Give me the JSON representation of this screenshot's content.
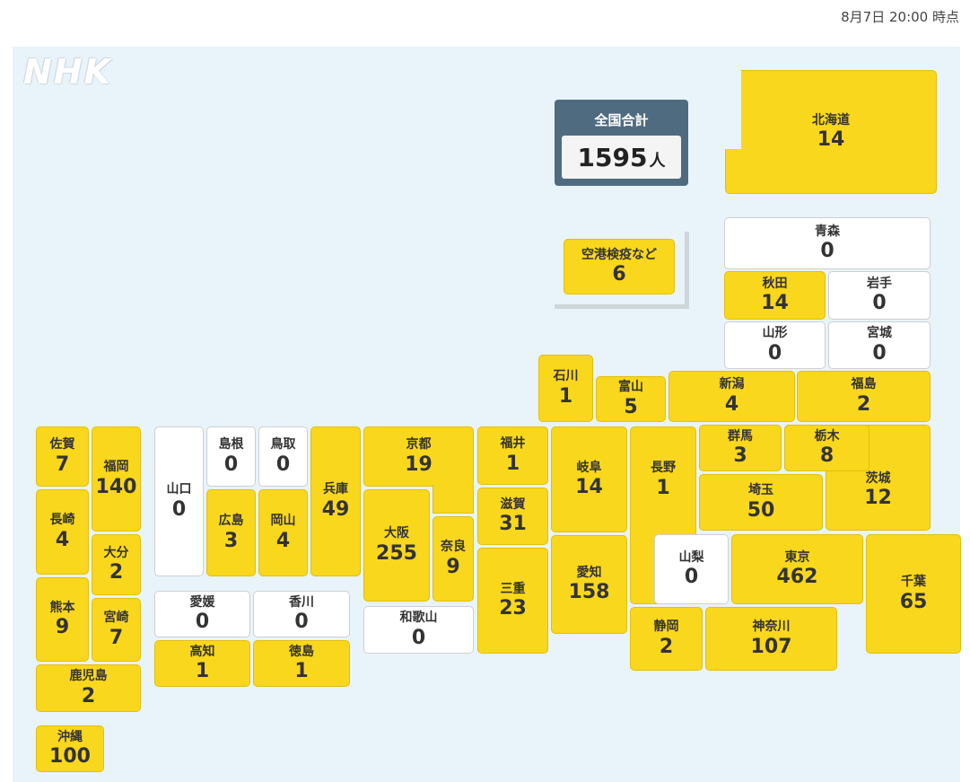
{
  "timestamp": "8月7日 20:00 時点",
  "logo": "NHK",
  "total": {
    "label": "全国合計",
    "value": "1595",
    "unit": "人"
  },
  "colors": {
    "positive": "#f9d71c",
    "zero": "#ffffff",
    "background": "#e8f4fa",
    "total_box": "#4f6b80"
  },
  "prefectures": [
    {
      "name": "北海道",
      "count": "14"
    },
    {
      "name": "青森",
      "count": "0"
    },
    {
      "name": "秋田",
      "count": "14"
    },
    {
      "name": "岩手",
      "count": "0"
    },
    {
      "name": "山形",
      "count": "0"
    },
    {
      "name": "宮城",
      "count": "0"
    },
    {
      "name": "空港検疫など",
      "count": "6"
    },
    {
      "name": "石川",
      "count": "1"
    },
    {
      "name": "富山",
      "count": "5"
    },
    {
      "name": "新潟",
      "count": "4"
    },
    {
      "name": "福島",
      "count": "2"
    },
    {
      "name": "佐賀",
      "count": "7"
    },
    {
      "name": "福岡",
      "count": "140"
    },
    {
      "name": "長崎",
      "count": "4"
    },
    {
      "name": "大分",
      "count": "2"
    },
    {
      "name": "熊本",
      "count": "9"
    },
    {
      "name": "宮崎",
      "count": "7"
    },
    {
      "name": "鹿児島",
      "count": "2"
    },
    {
      "name": "沖縄",
      "count": "100"
    },
    {
      "name": "山口",
      "count": "0"
    },
    {
      "name": "島根",
      "count": "0"
    },
    {
      "name": "鳥取",
      "count": "0"
    },
    {
      "name": "広島",
      "count": "3"
    },
    {
      "name": "岡山",
      "count": "4"
    },
    {
      "name": "兵庫",
      "count": "49"
    },
    {
      "name": "愛媛",
      "count": "0"
    },
    {
      "name": "香川",
      "count": "0"
    },
    {
      "name": "高知",
      "count": "1"
    },
    {
      "name": "徳島",
      "count": "1"
    },
    {
      "name": "京都",
      "count": "19"
    },
    {
      "name": "大阪",
      "count": "255"
    },
    {
      "name": "奈良",
      "count": "9"
    },
    {
      "name": "和歌山",
      "count": "0"
    },
    {
      "name": "福井",
      "count": "1"
    },
    {
      "name": "滋賀",
      "count": "31"
    },
    {
      "name": "三重",
      "count": "23"
    },
    {
      "name": "岐阜",
      "count": "14"
    },
    {
      "name": "愛知",
      "count": "158"
    },
    {
      "name": "長野",
      "count": "1"
    },
    {
      "name": "群馬",
      "count": "3"
    },
    {
      "name": "栃木",
      "count": "8"
    },
    {
      "name": "埼玉",
      "count": "50"
    },
    {
      "name": "茨城",
      "count": "12"
    },
    {
      "name": "山梨",
      "count": "0"
    },
    {
      "name": "東京",
      "count": "462"
    },
    {
      "name": "千葉",
      "count": "65"
    },
    {
      "name": "静岡",
      "count": "2"
    },
    {
      "name": "神奈川",
      "count": "107"
    }
  ]
}
